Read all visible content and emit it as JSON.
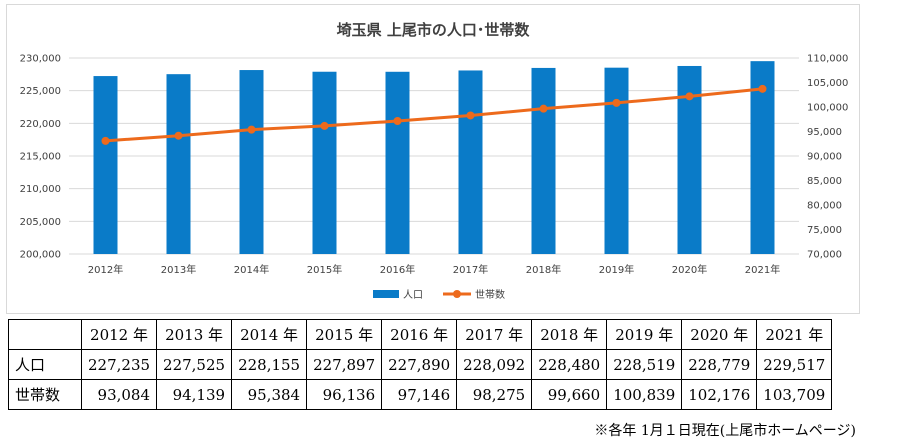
{
  "chart_data": {
    "type": "bar",
    "title": "埼玉県 上尾市の人口･世帯数",
    "categories": [
      "2012年",
      "2013年",
      "2014年",
      "2015年",
      "2016年",
      "2017年",
      "2018年",
      "2019年",
      "2020年",
      "2021年"
    ],
    "series": [
      {
        "name": "人口",
        "type": "bar",
        "axis": "left",
        "color": "#0a7bc8",
        "values": [
          227235,
          227525,
          228155,
          227897,
          227890,
          228092,
          228480,
          228519,
          228779,
          229517
        ]
      },
      {
        "name": "世帯数",
        "type": "line",
        "axis": "right",
        "color": "#ed6a1c",
        "values": [
          93084,
          94139,
          95384,
          96136,
          97146,
          98275,
          99660,
          100839,
          102176,
          103709
        ]
      }
    ],
    "ylim_left": [
      200000,
      230000
    ],
    "yticks_left": [
      "200,000",
      "205,000",
      "210,000",
      "215,000",
      "220,000",
      "225,000",
      "230,000"
    ],
    "ylim_right": [
      70000,
      110000
    ],
    "yticks_right": [
      "70,000",
      "75,000",
      "80,000",
      "85,000",
      "90,000",
      "95,000",
      "100,000",
      "105,000",
      "110,000"
    ],
    "grid": true,
    "legend": "bottom"
  },
  "table": {
    "years": [
      "2012 年",
      "2013 年",
      "2014 年",
      "2015 年",
      "2016 年",
      "2017 年",
      "2018 年",
      "2019 年",
      "2020 年",
      "2021 年"
    ],
    "rows": [
      {
        "label": "人口",
        "values": [
          "227,235",
          "227,525",
          "228,155",
          "227,897",
          "227,890",
          "228,092",
          "228,480",
          "228,519",
          "228,779",
          "229,517"
        ]
      },
      {
        "label": "世帯数",
        "values": [
          "93,084",
          "94,139",
          "95,384",
          "96,136",
          "97,146",
          "98,275",
          "99,660",
          "100,839",
          "102,176",
          "103,709"
        ]
      }
    ]
  },
  "note": "※各年 1月１日現在(上尾市ホームページ)"
}
